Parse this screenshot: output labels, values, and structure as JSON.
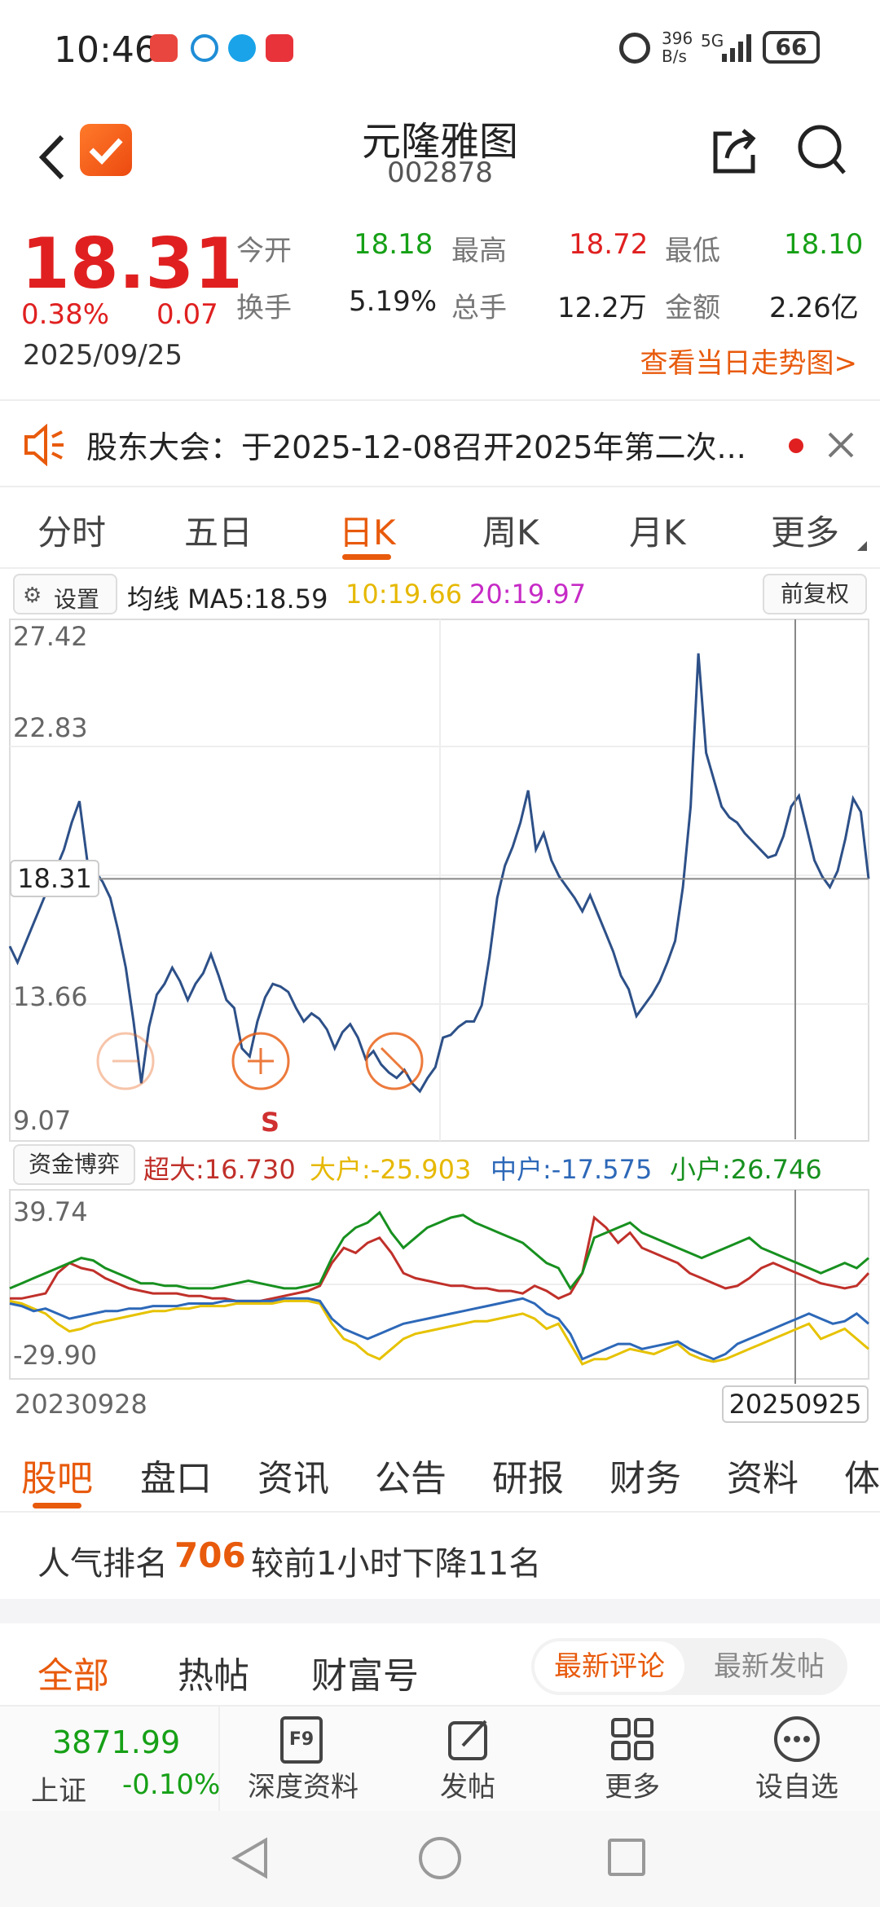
{
  "status_bar": {
    "time": "10:46",
    "net_speed_top": "396",
    "net_speed_bottom": "B/s",
    "signal": "5G",
    "battery": "66"
  },
  "header": {
    "title": "元隆雅图",
    "code": "002878"
  },
  "quote": {
    "price": "18.31",
    "change_pct": "0.38%",
    "change": "0.07",
    "date": "2025/09/25",
    "stats": [
      {
        "label": "今开",
        "value": "18.18",
        "color": "#16a016"
      },
      {
        "label": "最高",
        "value": "18.72",
        "color": "#e02020"
      },
      {
        "label": "最低",
        "value": "18.10",
        "color": "#16a016"
      },
      {
        "label": "换手",
        "value": "5.19%",
        "color": "#222222"
      },
      {
        "label": "总手",
        "value": "12.2万",
        "color": "#222222"
      },
      {
        "label": "金额",
        "value": "2.26亿",
        "color": "#222222"
      }
    ],
    "trend_link": "查看当日走势图>"
  },
  "notice": {
    "text": "股东大会：于2025-12-08召开2025年第二次..."
  },
  "period_tabs": [
    "分时",
    "五日",
    "日K",
    "周K",
    "月K",
    "更多"
  ],
  "active_period": 2,
  "chart_bar": {
    "settings": "设置",
    "ma_label": "均线 MA5:18.59",
    "ma10": "10:19.66",
    "ma20": "20:19.97",
    "adjust": "前复权"
  },
  "flow_bar": {
    "label": "资金博弈",
    "super": "超大:16.730",
    "big": "大户:-25.903",
    "mid": "中户:-17.575",
    "small": "小户:26.746"
  },
  "date_range": {
    "start": "20230928",
    "end": "20250925"
  },
  "price_marker": "18.31",
  "signal_mark": "S",
  "chart_data": [
    {
      "type": "line",
      "ylim": [
        9.07,
        27.42
      ],
      "yticks": [
        "27.42",
        "22.83",
        "18.31",
        "13.66",
        "9.07"
      ],
      "series": [
        {
          "values": [
            15.8,
            15.2,
            15.9,
            16.6,
            17.3,
            18.0,
            18.7,
            19.4,
            20.4,
            21.2,
            19.0,
            18.6,
            18.2,
            17.6,
            16.4,
            15.0,
            13.0,
            10.7,
            12.8,
            14.0,
            14.4,
            15.0,
            14.5,
            13.8,
            14.4,
            14.8,
            15.5,
            14.7,
            13.8,
            13.5,
            12.0,
            11.7,
            13.0,
            13.9,
            14.4,
            14.3,
            14.1,
            13.5,
            13.0,
            13.3,
            13.1,
            12.7,
            12.0,
            12.6,
            12.9,
            12.4,
            11.6,
            11.9,
            11.4,
            11.1,
            10.9,
            11.2,
            10.7,
            10.4,
            10.9,
            11.3,
            12.4,
            12.5,
            12.8,
            13.0,
            13.0,
            13.6,
            15.4,
            17.6,
            18.8,
            19.5,
            20.4,
            21.6,
            19.4,
            20.0,
            19.0,
            18.4,
            18.0,
            17.6,
            17.1,
            17.7,
            17.0,
            16.3,
            15.6,
            14.7,
            14.2,
            13.2,
            13.6,
            14.0,
            14.5,
            15.2,
            16.0,
            18.0,
            21.0,
            26.7,
            23.0,
            22.0,
            21.0,
            20.6,
            20.4,
            20.0,
            19.7,
            19.4,
            19.1,
            19.2,
            19.9,
            21.0,
            21.4,
            20.2,
            19.0,
            18.4,
            18.0,
            18.6,
            19.8,
            21.3,
            20.8,
            18.31
          ]
        }
      ],
      "price_line": 18.31
    },
    {
      "type": "line",
      "ylim": [
        -29.9,
        39.74
      ],
      "yticks": [
        "39.74",
        "-29.90"
      ],
      "series": [
        {
          "name": "超大",
          "values": [
            0,
            0,
            1,
            2,
            10,
            14,
            12,
            11,
            8,
            6,
            4,
            3,
            2,
            2,
            2,
            1,
            1,
            0,
            0,
            -1,
            -1,
            -1,
            0,
            1,
            2,
            3,
            5,
            14,
            20,
            18,
            22,
            24,
            18,
            10,
            8,
            7,
            6,
            5,
            5,
            4,
            4,
            3,
            3,
            2,
            5,
            3,
            0,
            2,
            10,
            32,
            28,
            22,
            26,
            20,
            18,
            16,
            14,
            10,
            8,
            6,
            4,
            5,
            8,
            12,
            14,
            12,
            10,
            8,
            6,
            5,
            4,
            5,
            10
          ]
        },
        {
          "name": "大户",
          "values": [
            -1,
            -2,
            -4,
            -6,
            -10,
            -13,
            -12,
            -10,
            -9,
            -8,
            -7,
            -6,
            -5,
            -5,
            -4,
            -4,
            -3,
            -3,
            -3,
            -2,
            -2,
            -2,
            -2,
            -1,
            -1,
            -1,
            -2,
            -10,
            -16,
            -18,
            -22,
            -24,
            -20,
            -16,
            -14,
            -13,
            -12,
            -11,
            -10,
            -9,
            -9,
            -8,
            -7,
            -6,
            -8,
            -12,
            -10,
            -18,
            -26,
            -24,
            -24,
            -22,
            -20,
            -21,
            -22,
            -20,
            -18,
            -22,
            -24,
            -25,
            -24,
            -22,
            -20,
            -18,
            -16,
            -14,
            -12,
            -10,
            -16,
            -14,
            -12,
            -16,
            -20
          ]
        },
        {
          "name": "中户",
          "values": [
            -2,
            -3,
            -5,
            -4,
            -6,
            -8,
            -7,
            -6,
            -5,
            -5,
            -4,
            -4,
            -3,
            -3,
            -3,
            -2,
            -2,
            -2,
            -1,
            -1,
            -1,
            -1,
            -1,
            0,
            0,
            0,
            -1,
            -8,
            -12,
            -14,
            -16,
            -14,
            -12,
            -10,
            -9,
            -8,
            -7,
            -6,
            -5,
            -4,
            -3,
            -2,
            -1,
            0,
            -2,
            -6,
            -8,
            -14,
            -24,
            -22,
            -20,
            -18,
            -18,
            -20,
            -19,
            -18,
            -17,
            -20,
            -22,
            -24,
            -22,
            -18,
            -16,
            -14,
            -12,
            -10,
            -8,
            -6,
            -8,
            -10,
            -9,
            -6,
            -10
          ]
        },
        {
          "name": "小户",
          "values": [
            4,
            6,
            8,
            10,
            12,
            14,
            16,
            15,
            12,
            10,
            8,
            6,
            6,
            5,
            5,
            4,
            4,
            4,
            5,
            6,
            7,
            6,
            5,
            4,
            4,
            5,
            6,
            16,
            24,
            28,
            30,
            34,
            26,
            20,
            24,
            28,
            30,
            32,
            33,
            30,
            28,
            26,
            24,
            22,
            18,
            14,
            12,
            4,
            10,
            24,
            26,
            28,
            30,
            26,
            24,
            22,
            20,
            18,
            16,
            18,
            20,
            22,
            24,
            20,
            18,
            16,
            14,
            12,
            10,
            12,
            14,
            12,
            16
          ]
        }
      ]
    }
  ],
  "board_tabs": [
    "股吧",
    "盘口",
    "资讯",
    "公告",
    "研报",
    "财务",
    "资料",
    "体"
  ],
  "active_board": 0,
  "rank": {
    "prefix": "人气排名",
    "value": "706",
    "suffix": "较前1小时下降11名"
  },
  "feed_tabs": {
    "all": "全部",
    "hot": "热帖",
    "fortune": "财富号",
    "latest_comment": "最新评论",
    "latest_post": "最新发帖"
  },
  "bottom_nav": {
    "index_value": "3871.99",
    "index_name": "上证",
    "index_change": "-0.10%",
    "items": [
      "深度资料",
      "发帖",
      "更多",
      "设自选"
    ]
  },
  "colors": {
    "accent": "#e85a0c",
    "up": "#e02020",
    "down": "#16a016",
    "line": "#2d5088"
  }
}
